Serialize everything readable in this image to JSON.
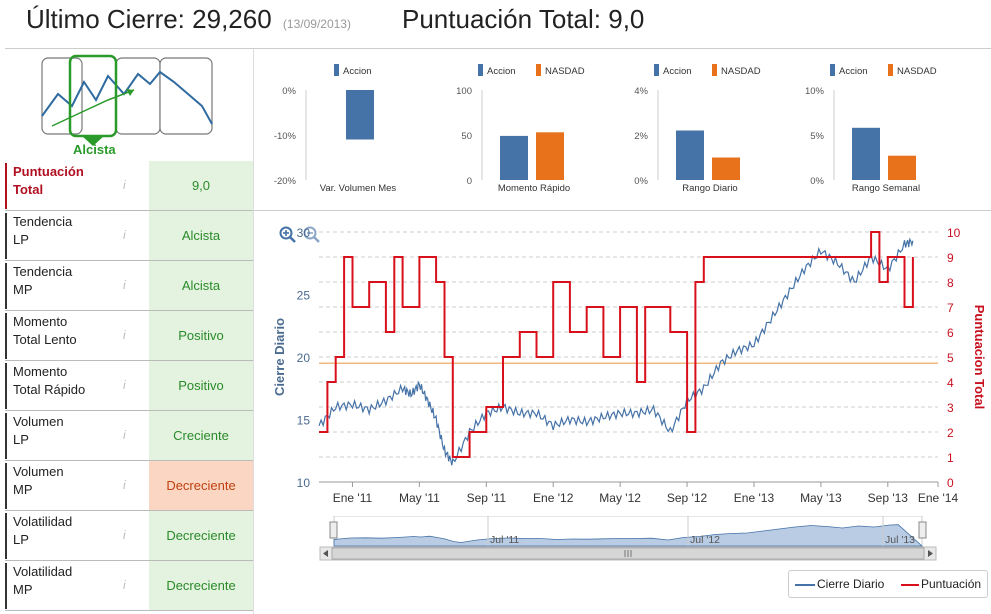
{
  "header": {
    "last_close_label": "Último Cierre:",
    "last_close_value": "29,260",
    "last_close_date": "(13/09/2013)",
    "total_score_label": "Puntuación Total:",
    "total_score_value": "9,0"
  },
  "trend_widget": {
    "label": "Alcista"
  },
  "rows": [
    {
      "label1": "Puntuación",
      "label2": "Total",
      "value": "9,0"
    },
    {
      "label1": "Tendencia",
      "label2": "LP",
      "value": "Alcista"
    },
    {
      "label1": "Tendencia",
      "label2": "MP",
      "value": "Alcista"
    },
    {
      "label1": "Momento",
      "label2": "Total Lento",
      "value": "Positivo"
    },
    {
      "label1": "Momento",
      "label2": "Total Rápido",
      "value": "Positivo"
    },
    {
      "label1": "Volumen",
      "label2": "LP",
      "value": "Creciente"
    },
    {
      "label1": "Volumen",
      "label2": "MP",
      "value": "Decreciente"
    },
    {
      "label1": "Volatilidad",
      "label2": "LP",
      "value": "Decreciente"
    },
    {
      "label1": "Volatilidad",
      "label2": "MP",
      "value": "Decreciente"
    }
  ],
  "info_icon": "i",
  "colors": {
    "accion": "#4572a7",
    "nasdaq": "#e8711c",
    "score": "#d8101c",
    "close": "#4572a7",
    "ref": "#f0b880"
  },
  "chart_data": [
    {
      "type": "bar",
      "title": "Var. Volumen Mes",
      "series": [
        {
          "name": "Accion",
          "values": [
            -11
          ]
        }
      ],
      "ylim": [
        -20,
        0
      ],
      "yticks": [
        "0%",
        "-10%",
        "-20%"
      ]
    },
    {
      "type": "bar",
      "title": "Momento Rápido",
      "series": [
        {
          "name": "Accion",
          "values": [
            49
          ]
        },
        {
          "name": "NASDAD",
          "values": [
            53
          ]
        }
      ],
      "ylim": [
        0,
        100
      ],
      "yticks": [
        "100",
        "50",
        "0"
      ]
    },
    {
      "type": "bar",
      "title": "Rango Diario",
      "series": [
        {
          "name": "Accion",
          "values": [
            2.2
          ]
        },
        {
          "name": "NASDAD",
          "values": [
            1.0
          ]
        }
      ],
      "ylim": [
        0,
        4
      ],
      "yticks": [
        "4%",
        "2%",
        "0%"
      ]
    },
    {
      "type": "bar",
      "title": "Rango Semanal",
      "series": [
        {
          "name": "Accion",
          "values": [
            5.8
          ]
        },
        {
          "name": "NASDAD",
          "values": [
            2.7
          ]
        }
      ],
      "ylim": [
        0,
        10
      ],
      "yticks": [
        "10%",
        "5%",
        "0%"
      ]
    },
    {
      "type": "line",
      "ylabel": "Cierre Diario",
      "y2label": "Puntuacion Total",
      "ylim": [
        10,
        30
      ],
      "y2lim": [
        0,
        10
      ],
      "yticks": [
        "10",
        "15",
        "20",
        "25",
        "30"
      ],
      "y2ticks": [
        "0",
        "1",
        "2",
        "3",
        "4",
        "5",
        "6",
        "7",
        "8",
        "9",
        "10"
      ],
      "xticks": [
        "Ene '11",
        "May '11",
        "Sep '11",
        "Ene '12",
        "May '12",
        "Sep '12",
        "Ene '13",
        "May '13",
        "Sep '13",
        "Ene '14"
      ],
      "xlim_months": [
        0,
        37
      ],
      "reference_line": 19.5,
      "series": [
        {
          "name": "Cierre Diario",
          "x": [
            0,
            1,
            2,
            3,
            4,
            5,
            5.5,
            6,
            6.5,
            7,
            7.5,
            8,
            9,
            10,
            11,
            12,
            13,
            14,
            15,
            16,
            17,
            18,
            19,
            20,
            21,
            22,
            23,
            24,
            25,
            26,
            27,
            28,
            29,
            30,
            31,
            32,
            33,
            34,
            35,
            35.5
          ],
          "y": [
            14.5,
            16,
            16.2,
            15.8,
            16.5,
            17.5,
            17,
            17.8,
            16.5,
            15,
            12.5,
            11.5,
            14,
            15.5,
            16,
            15.5,
            15.5,
            14.5,
            15,
            14.8,
            15.2,
            15.5,
            15.5,
            15.8,
            14,
            16.5,
            17.5,
            19.5,
            20.5,
            21,
            23,
            25,
            27,
            28.5,
            27.5,
            26,
            28,
            27,
            29,
            29.3
          ]
        },
        {
          "name": "Puntuación",
          "x": [
            0,
            0.5,
            1,
            1.5,
            2,
            3,
            4,
            4.5,
            5,
            6,
            7,
            7.5,
            8,
            9,
            10,
            11,
            12,
            13,
            14,
            15,
            16,
            17,
            18,
            19,
            19.5,
            20,
            21,
            22,
            22.5,
            23,
            24,
            25,
            26,
            27,
            28,
            29,
            30,
            31,
            32,
            33,
            33.5,
            34,
            35,
            35.5
          ],
          "y": [
            2,
            4,
            5,
            9,
            7,
            8,
            6,
            9,
            7,
            9,
            8,
            5,
            1,
            2,
            3,
            5,
            6,
            5,
            8,
            6,
            7,
            5,
            7,
            4,
            7,
            7,
            6,
            2,
            8,
            9,
            9,
            9,
            9,
            9,
            9,
            9,
            9,
            9,
            9,
            10,
            8,
            9,
            7,
            9
          ]
        }
      ]
    }
  ],
  "mini_legend": {
    "accion": "Accion",
    "nasdaq": "NASDAD"
  },
  "navigator_ticks": [
    "Jul '11",
    "Jul '12",
    "Jul '13"
  ],
  "legend": {
    "close": "Cierre Diario",
    "score": "Puntuación"
  }
}
